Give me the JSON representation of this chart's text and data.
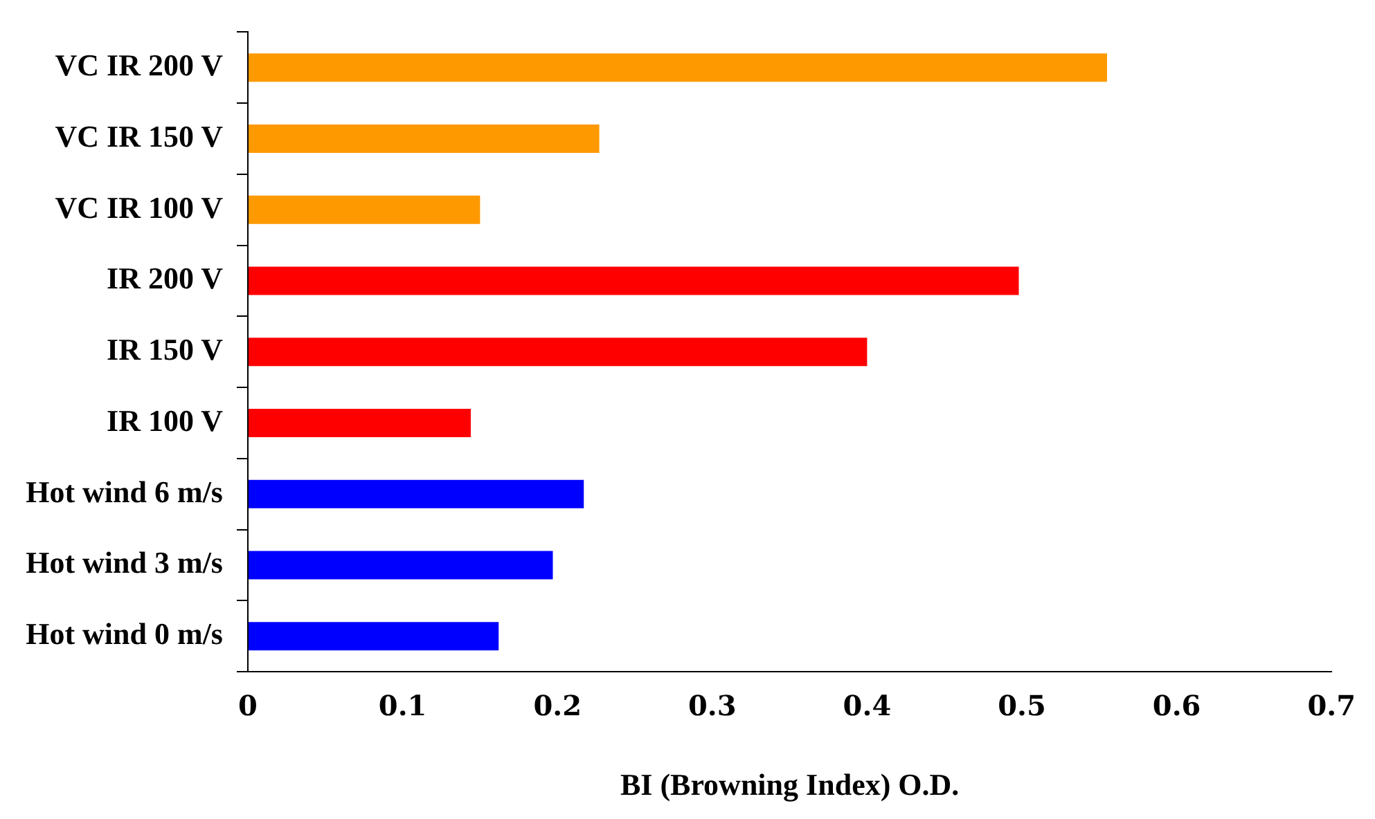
{
  "chart_data": {
    "type": "bar",
    "orientation": "horizontal",
    "xlabel": "BI (Browning Index) O.D.",
    "categories": [
      "VC IR 200 V",
      "VC IR 150 V",
      "VC IR 100 V",
      "IR 200 V",
      "IR 150 V",
      "IR 100 V",
      "Hot wind 6 m/s",
      "Hot wind 3 m/s",
      "Hot wind 0 m/s"
    ],
    "values": [
      0.555,
      0.227,
      0.15,
      0.498,
      0.4,
      0.144,
      0.217,
      0.197,
      0.162
    ],
    "colors": [
      "#ff9900",
      "#ff9900",
      "#ff9900",
      "#ff0000",
      "#ff0000",
      "#ff0000",
      "#0000ff",
      "#0000ff",
      "#0000ff"
    ],
    "xlim": [
      0,
      0.7
    ],
    "xticks": [
      0,
      0.1,
      0.2,
      0.3,
      0.4,
      0.5,
      0.6,
      0.7
    ],
    "grid": false,
    "legend": false
  }
}
